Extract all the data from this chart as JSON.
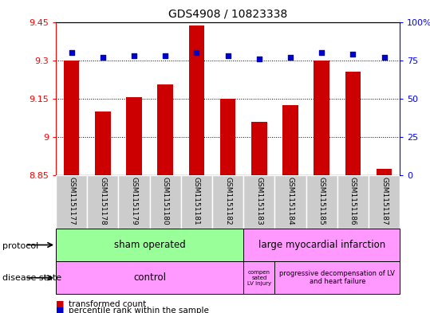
{
  "title": "GDS4908 / 10823338",
  "samples": [
    "GSM1151177",
    "GSM1151178",
    "GSM1151179",
    "GSM1151180",
    "GSM1151181",
    "GSM1151182",
    "GSM1151183",
    "GSM1151184",
    "GSM1151185",
    "GSM1151186",
    "GSM1151187"
  ],
  "transformed_counts": [
    9.3,
    9.1,
    9.155,
    9.205,
    9.435,
    9.15,
    9.06,
    9.125,
    9.3,
    9.255,
    8.875
  ],
  "percentile_ranks": [
    80,
    77,
    78,
    78,
    80,
    78,
    76,
    77,
    80,
    79,
    77
  ],
  "ylim_left": [
    8.85,
    9.45
  ],
  "ylim_right": [
    0,
    100
  ],
  "yticks_left": [
    8.85,
    9.0,
    9.15,
    9.3,
    9.45
  ],
  "yticks_right": [
    0,
    25,
    50,
    75,
    100
  ],
  "ytick_labels_left": [
    "8.85",
    "9",
    "9.15",
    "9.3",
    "9.45"
  ],
  "ytick_labels_right": [
    "0",
    "25",
    "50",
    "75",
    "100%"
  ],
  "bar_color": "#cc0000",
  "dot_color": "#0000cc",
  "bar_bottom": 8.85,
  "sham_count": 6,
  "lmi_count": 5,
  "control_count": 6,
  "comp_count": 1,
  "prog_count": 4,
  "protocol_sham_label": "sham operated",
  "protocol_lmi_label": "large myocardial infarction",
  "protocol_sham_color": "#99ff99",
  "protocol_lmi_color": "#ff99ff",
  "disease_control_label": "control",
  "disease_comp_label": "compen\nsated\nLV injury",
  "disease_prog_label": "progressive decompensation of LV\nand heart failure",
  "disease_color": "#ff99ff",
  "sample_bg_color": "#cccccc",
  "legend_bar_label": "transformed count",
  "legend_dot_label": "percentile rank within the sample",
  "dot_size": 18
}
